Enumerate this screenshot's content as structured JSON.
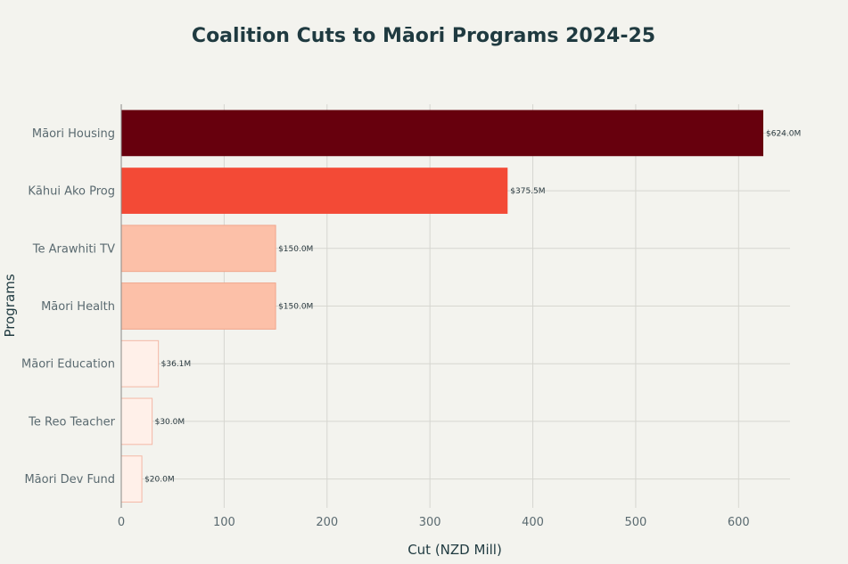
{
  "chart_data": {
    "type": "bar",
    "orientation": "horizontal",
    "title": "Coalition Cuts to Māori Programs 2024-25",
    "xlabel": "Cut (NZD Mill)",
    "ylabel": "Programs",
    "xlim": [
      0,
      650
    ],
    "x_ticks": [
      0,
      100,
      200,
      300,
      400,
      500,
      600
    ],
    "grid": true,
    "categories": [
      "Māori Housing",
      "Kāhui Ako Prog",
      "Te Arawhiti TV",
      "Māori Health",
      "Māori Education",
      "Te Reo Teacher",
      "Māori Dev Fund"
    ],
    "values": [
      624.0,
      375.5,
      150.0,
      150.0,
      36.1,
      30.0,
      20.0
    ],
    "data_labels": [
      "$624.0M",
      "$375.5M",
      "$150.0M",
      "$150.0M",
      "$36.1M",
      "$30.0M",
      "$20.0M"
    ],
    "bar_colors": [
      "#67000d",
      "#f34a36",
      "#fcc0a8",
      "#fcc0a8",
      "#fff0e9",
      "#fff0e9",
      "#fff0e9"
    ],
    "background_color": "#f3f3ee"
  }
}
